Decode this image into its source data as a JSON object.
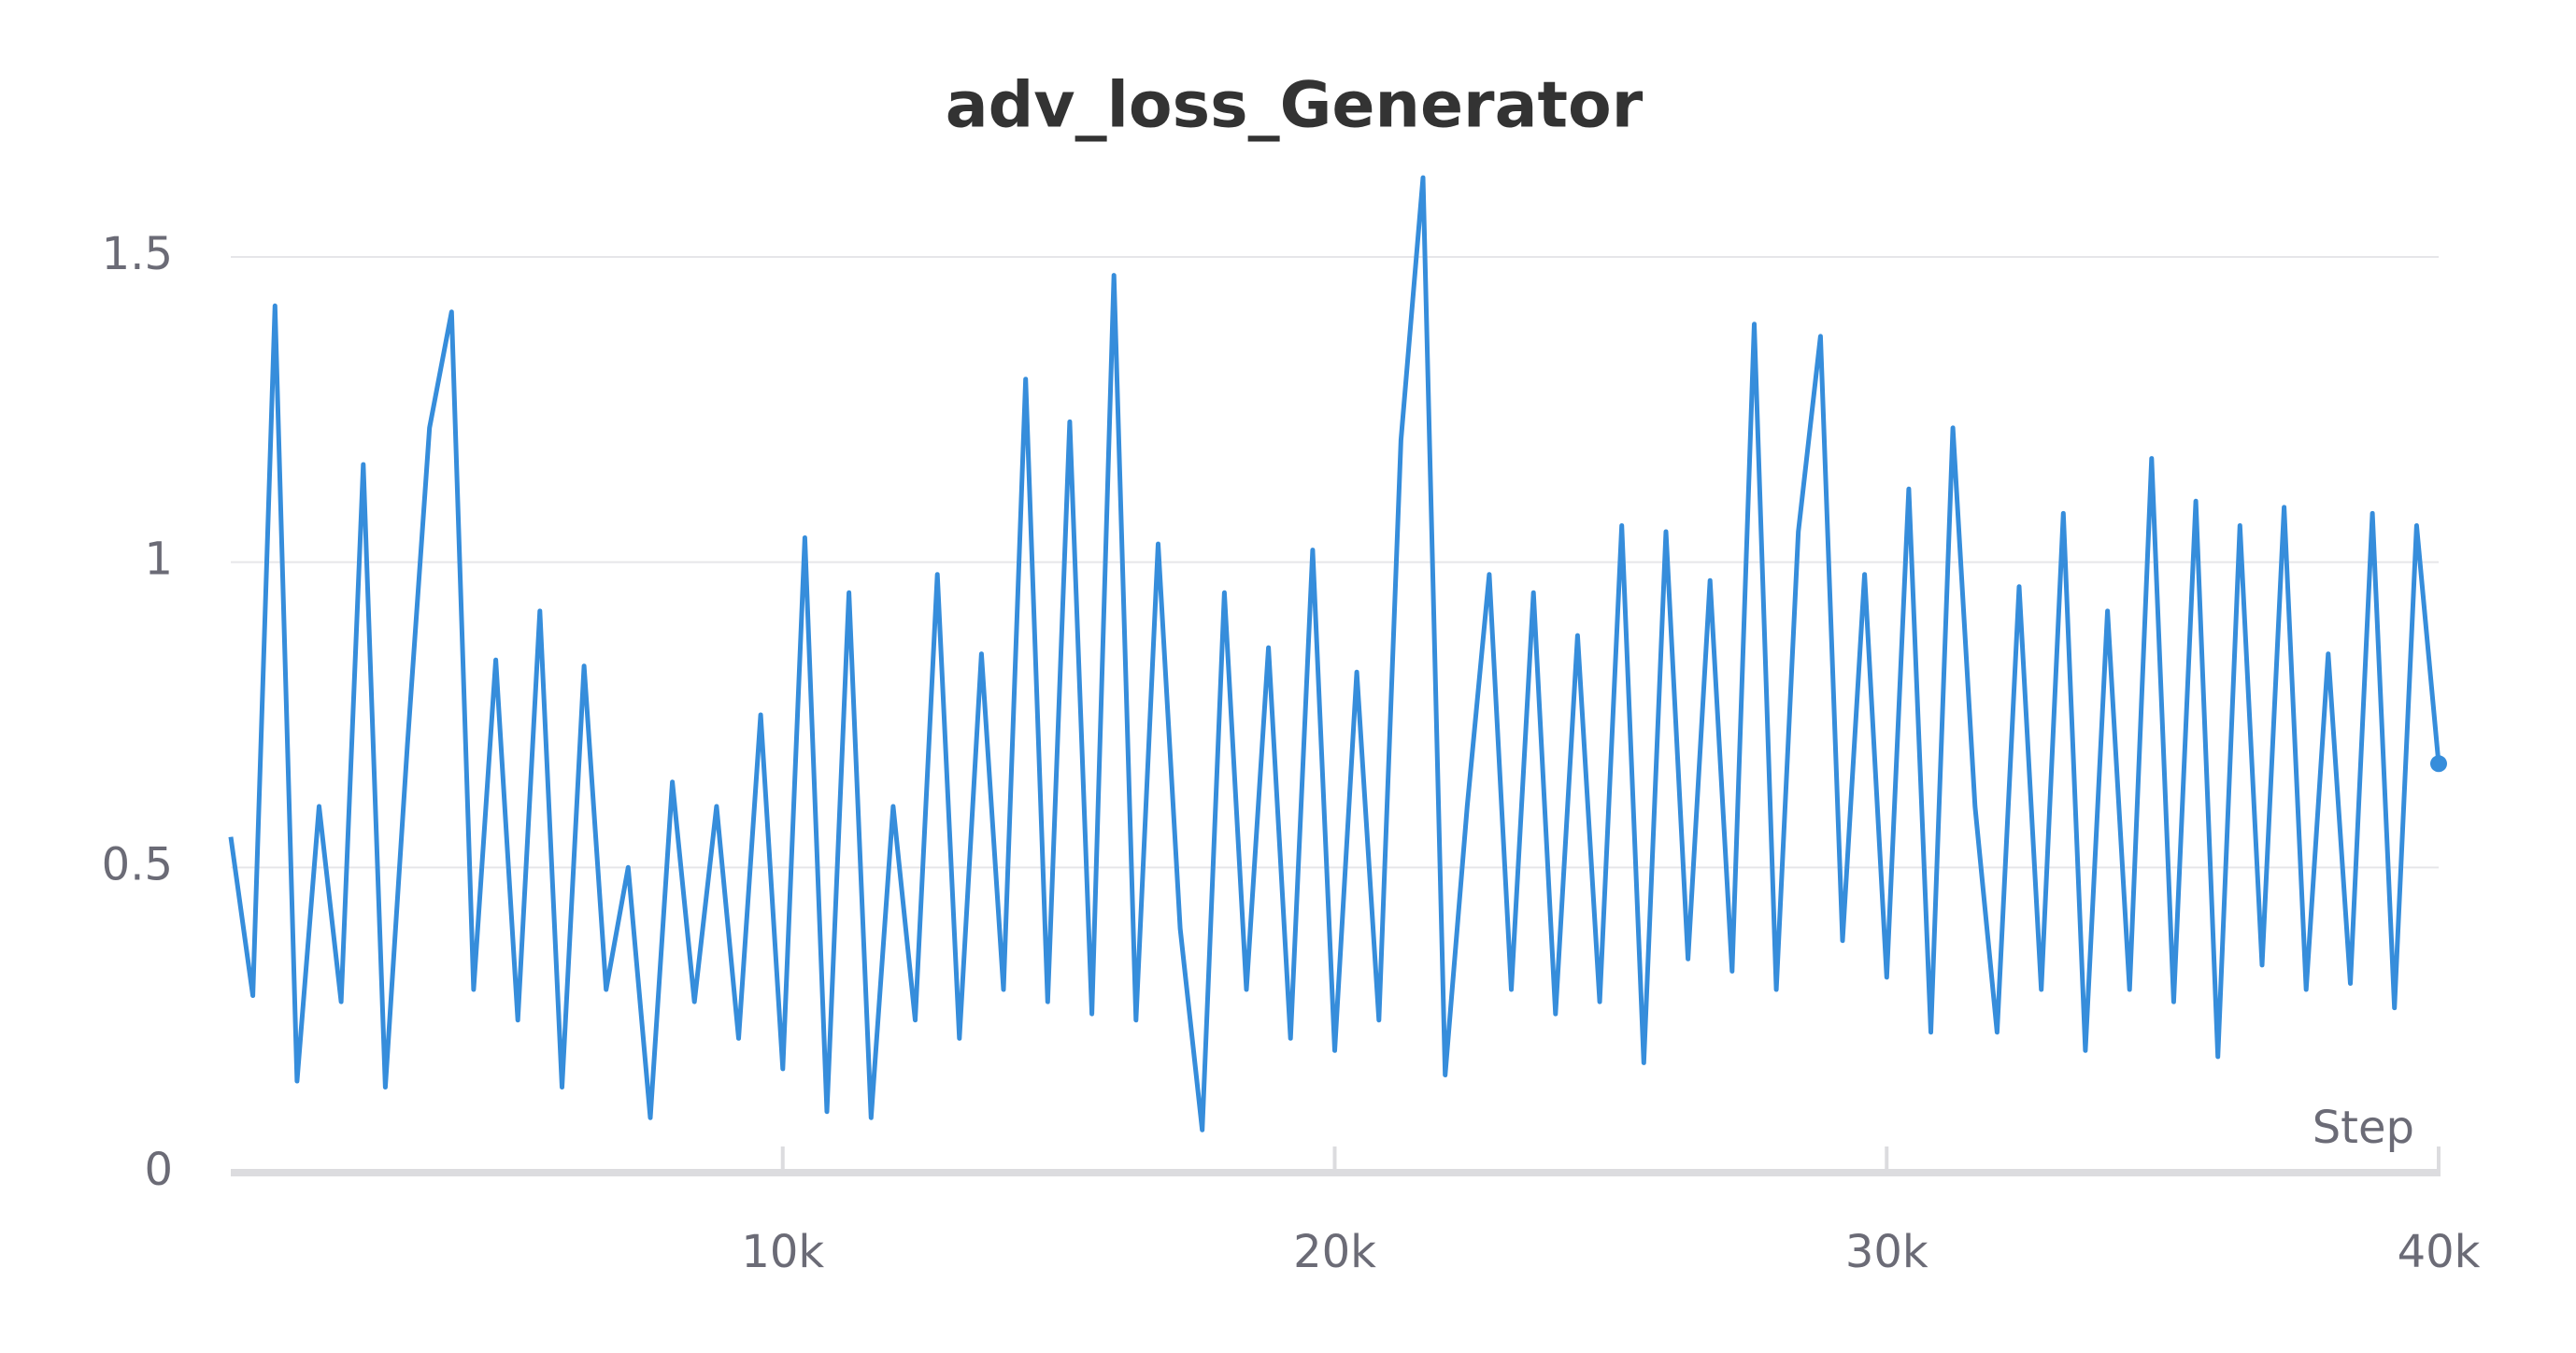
{
  "chart_data": {
    "type": "line",
    "title": "adv_loss_Generator",
    "x_label": "Step",
    "x": [
      0,
      400,
      800,
      1200,
      1600,
      2000,
      2400,
      2800,
      3200,
      3600,
      4000,
      4400,
      4800,
      5200,
      5600,
      6000,
      6400,
      6800,
      7200,
      7600,
      8000,
      8400,
      8800,
      9200,
      9600,
      10000,
      10400,
      10800,
      11200,
      11600,
      12000,
      12400,
      12800,
      13200,
      13600,
      14000,
      14400,
      14800,
      15200,
      15600,
      16000,
      16400,
      16800,
      17200,
      17600,
      18000,
      18400,
      18800,
      19200,
      19600,
      20000,
      20400,
      20800,
      21200,
      21600,
      22000,
      22400,
      22800,
      23200,
      23600,
      24000,
      24400,
      24800,
      25200,
      25600,
      26000,
      26400,
      26800,
      27200,
      27600,
      28000,
      28400,
      28800,
      29200,
      29600,
      30000,
      30400,
      30800,
      31200,
      31600,
      32000,
      32400,
      32800,
      33200,
      33600,
      34000,
      34400,
      34800,
      35200,
      35600,
      36000,
      36400,
      36800,
      37200,
      37600,
      38000,
      38400,
      38800,
      39200,
      39600,
      40000
    ],
    "values": [
      0.55,
      0.29,
      1.42,
      0.15,
      0.6,
      0.28,
      1.16,
      0.14,
      0.7,
      1.22,
      1.41,
      0.3,
      0.84,
      0.25,
      0.92,
      0.14,
      0.83,
      0.3,
      0.5,
      0.09,
      0.64,
      0.28,
      0.6,
      0.22,
      0.75,
      0.17,
      1.04,
      0.1,
      0.95,
      0.09,
      0.6,
      0.25,
      0.98,
      0.22,
      0.85,
      0.3,
      1.3,
      0.28,
      1.23,
      0.26,
      1.47,
      0.25,
      1.03,
      0.4,
      0.07,
      0.95,
      0.3,
      0.86,
      0.22,
      1.02,
      0.2,
      0.82,
      0.25,
      1.2,
      1.63,
      0.16,
      0.6,
      0.98,
      0.3,
      0.95,
      0.26,
      0.88,
      0.28,
      1.06,
      0.18,
      1.05,
      0.35,
      0.97,
      0.33,
      1.39,
      0.3,
      1.05,
      1.37,
      0.38,
      0.98,
      0.32,
      1.12,
      0.23,
      1.22,
      0.6,
      0.23,
      0.96,
      0.3,
      1.08,
      0.2,
      0.92,
      0.3,
      1.17,
      0.28,
      1.1,
      0.19,
      1.06,
      0.34,
      1.09,
      0.3,
      0.85,
      0.31,
      1.08,
      0.27,
      1.06,
      0.67
    ],
    "color": "#368ddb",
    "xlim": [
      0,
      40000
    ],
    "xticks": [
      {
        "value": 10000,
        "label": "10k"
      },
      {
        "value": 20000,
        "label": "20k"
      },
      {
        "value": 30000,
        "label": "30k"
      },
      {
        "value": 40000,
        "label": "40k"
      }
    ],
    "ylim": [
      0,
      1.65
    ],
    "yticks": [
      0,
      0.5,
      1,
      1.5
    ],
    "grid": true
  }
}
